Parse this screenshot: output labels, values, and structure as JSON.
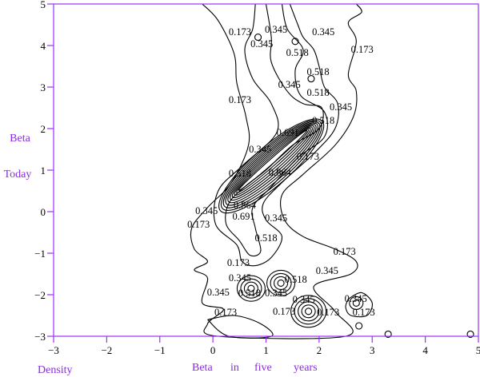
{
  "chart_data": {
    "type": "contour",
    "xlabel_words": [
      "Beta",
      "in",
      "five",
      "years"
    ],
    "ylabel_lines": [
      "Beta",
      "Today"
    ],
    "corner_label": "Density",
    "xlim": [
      -3,
      5
    ],
    "ylim": [
      -3,
      5
    ],
    "xticks": [
      "-3",
      "-2",
      "-1",
      "0",
      "1",
      "2",
      "3",
      "4",
      "5"
    ],
    "yticks": [
      "-3",
      "-2",
      "-1",
      "0",
      "1",
      "2",
      "3",
      "4",
      "5"
    ],
    "grid": false,
    "axis_color": "#9b30ff",
    "line_color": "#000000",
    "levels": [
      0.173,
      0.345,
      0.518,
      0.691,
      0.864
    ],
    "contours": [
      {
        "level": 0.173,
        "points": [
          [
            -0.2,
            5
          ],
          [
            0.1,
            4.6
          ],
          [
            0.4,
            3.8
          ],
          [
            0.45,
            3.1
          ],
          [
            0.62,
            2.3
          ],
          [
            0.67,
            1.6
          ],
          [
            0.35,
            0.7
          ],
          [
            -0.1,
            0.1
          ],
          [
            -0.4,
            -0.4
          ],
          [
            -0.35,
            -0.9
          ],
          [
            -0.1,
            -1.2
          ],
          [
            -0.35,
            -1.4
          ],
          [
            -0.1,
            -1.6
          ],
          [
            -0.2,
            -2.2
          ],
          [
            0.2,
            -2.35
          ],
          [
            -0.1,
            -2.7
          ],
          [
            0.1,
            -3
          ],
          [
            2.5,
            -3
          ],
          [
            2.3,
            -2.4
          ],
          [
            1.9,
            -1.8
          ],
          [
            2.6,
            -1.5
          ],
          [
            2.7,
            -1.2
          ],
          [
            2.3,
            -0.9
          ],
          [
            1.7,
            -0.6
          ],
          [
            1.35,
            -0.2
          ],
          [
            1.3,
            0.4
          ],
          [
            1.7,
            0.9
          ],
          [
            2.3,
            1.6
          ],
          [
            2.65,
            2.3
          ],
          [
            2.7,
            2.9
          ],
          [
            2.55,
            3.3
          ],
          [
            2.7,
            4.1
          ],
          [
            2.55,
            4.55
          ],
          [
            2.8,
            4.8
          ],
          [
            2.7,
            5
          ]
        ]
      },
      {
        "level": 0.345,
        "points": [
          [
            0.8,
            5
          ],
          [
            0.75,
            4.4
          ],
          [
            0.6,
            3.9
          ],
          [
            0.75,
            3.2
          ],
          [
            1.1,
            2.6
          ],
          [
            1.2,
            1.9
          ],
          [
            0.55,
            1.1
          ],
          [
            0.1,
            0.5
          ],
          [
            0.05,
            -0.3
          ],
          [
            0.45,
            -0.8
          ],
          [
            0.55,
            -1.2
          ],
          [
            0.8,
            -1.3
          ],
          [
            1.1,
            -1.1
          ],
          [
            1.3,
            -0.6
          ],
          [
            1.0,
            -0.2
          ],
          [
            0.95,
            0.2
          ],
          [
            1.3,
            0.7
          ],
          [
            1.9,
            1.4
          ],
          [
            2.3,
            2.0
          ],
          [
            2.35,
            2.6
          ],
          [
            2.1,
            3.0
          ],
          [
            2.0,
            3.5
          ],
          [
            1.9,
            3.9
          ],
          [
            1.7,
            4.2
          ],
          [
            1.6,
            4.5
          ],
          [
            1.45,
            5
          ]
        ]
      },
      {
        "level": 0.518,
        "points": [
          [
            1.0,
            5
          ],
          [
            1.1,
            4.2
          ],
          [
            1.1,
            3.6
          ],
          [
            1.4,
            2.9
          ],
          [
            1.7,
            2.6
          ],
          [
            2.05,
            2.5
          ],
          [
            2.0,
            2.0
          ],
          [
            1.5,
            1.6
          ],
          [
            1.0,
            1.0
          ],
          [
            0.6,
            0.6
          ],
          [
            0.3,
            0.2
          ],
          [
            0.25,
            -0.3
          ],
          [
            0.5,
            -0.7
          ],
          [
            0.7,
            -1.05
          ],
          [
            0.9,
            -0.95
          ],
          [
            0.8,
            -0.4
          ],
          [
            0.75,
            0.1
          ],
          [
            1.1,
            0.6
          ],
          [
            1.6,
            1.3
          ],
          [
            2.1,
            1.8
          ],
          [
            2.1,
            2.4
          ],
          [
            1.65,
            2.8
          ],
          [
            1.55,
            3.4
          ],
          [
            1.7,
            3.9
          ],
          [
            1.4,
            4.4
          ],
          [
            1.3,
            5
          ]
        ]
      },
      {
        "level": 0.173,
        "points": [
          [
            -0.1,
            -2.6
          ],
          [
            0.4,
            -2.5
          ],
          [
            0.9,
            -2.7
          ],
          [
            1.1,
            -3
          ],
          [
            0.3,
            -3
          ],
          [
            -0.1,
            -2.6
          ]
        ]
      },
      {
        "level": 0.173,
        "points": [
          [
            2.55,
            -2.1
          ],
          [
            2.8,
            -1.95
          ],
          [
            3.0,
            -2.2
          ],
          [
            2.9,
            -2.5
          ],
          [
            2.6,
            -2.5
          ],
          [
            2.5,
            -2.3
          ],
          [
            2.55,
            -2.1
          ]
        ]
      }
    ],
    "ridge": {
      "from": [
        0.3,
        0.2
      ],
      "to": [
        1.9,
        2.0
      ],
      "rings": 10
    },
    "peaks": [
      {
        "at": [
          0.72,
          -1.85
        ],
        "rings": 4
      },
      {
        "at": [
          1.28,
          -1.72
        ],
        "rings": 4
      },
      {
        "at": [
          1.8,
          -2.4
        ],
        "rings": 5
      },
      {
        "at": [
          2.7,
          -2.2
        ],
        "rings": 2
      },
      {
        "at": [
          1.55,
          4.1
        ],
        "rings": 1
      },
      {
        "at": [
          1.85,
          3.2
        ],
        "rings": 1
      },
      {
        "at": [
          2.75,
          -2.75
        ],
        "rings": 1
      },
      {
        "at": [
          0.85,
          4.2
        ],
        "rings": 1
      },
      {
        "at": [
          3.3,
          -2.95
        ],
        "rings": 1
      },
      {
        "at": [
          4.85,
          -2.95
        ],
        "rings": 1
      }
    ],
    "labels": [
      {
        "text": "0.173",
        "at": [
          0.51,
          4.33
        ]
      },
      {
        "text": "0.345",
        "at": [
          1.19,
          4.38
        ]
      },
      {
        "text": "0.345",
        "at": [
          2.08,
          4.33
        ]
      },
      {
        "text": "0.345",
        "at": [
          0.92,
          4.04
        ]
      },
      {
        "text": "0.518",
        "at": [
          1.59,
          3.83
        ]
      },
      {
        "text": "0.173",
        "at": [
          2.81,
          3.9
        ]
      },
      {
        "text": "0.518",
        "at": [
          1.98,
          3.37
        ]
      },
      {
        "text": "0.345",
        "at": [
          1.44,
          3.06
        ]
      },
      {
        "text": "0.518",
        "at": [
          1.98,
          2.87
        ]
      },
      {
        "text": "0.173",
        "at": [
          0.51,
          2.69
        ]
      },
      {
        "text": "0.345",
        "at": [
          2.41,
          2.52
        ]
      },
      {
        "text": "0.518",
        "at": [
          2.08,
          2.19
        ]
      },
      {
        "text": "0.691",
        "at": [
          1.41,
          1.9
        ]
      },
      {
        "text": "0.345",
        "at": [
          0.89,
          1.5
        ]
      },
      {
        "text": "0.173",
        "at": [
          1.79,
          1.33
        ]
      },
      {
        "text": "0.864",
        "at": [
          1.26,
          0.94
        ]
      },
      {
        "text": "0.518",
        "at": [
          0.51,
          0.92
        ]
      },
      {
        "text": "0.864",
        "at": [
          0.6,
          0.15
        ]
      },
      {
        "text": "0.345",
        "at": [
          -0.12,
          0.02
        ]
      },
      {
        "text": "0.691",
        "at": [
          0.58,
          -0.12
        ]
      },
      {
        "text": "0.345",
        "at": [
          1.19,
          -0.15
        ]
      },
      {
        "text": "0.173",
        "at": [
          -0.27,
          -0.31
        ]
      },
      {
        "text": "0.518",
        "at": [
          1.0,
          -0.63
        ]
      },
      {
        "text": "0.173",
        "at": [
          2.48,
          -0.96
        ]
      },
      {
        "text": "0.173",
        "at": [
          0.48,
          -1.23
        ]
      },
      {
        "text": "0.345",
        "at": [
          2.15,
          -1.42
        ]
      },
      {
        "text": "0.345",
        "at": [
          0.51,
          -1.6
        ]
      },
      {
        "text": "0.518",
        "at": [
          1.56,
          -1.63
        ]
      },
      {
        "text": "0.345",
        "at": [
          0.1,
          -1.94
        ]
      },
      {
        "text": "0.518",
        "at": [
          0.69,
          -1.96
        ]
      },
      {
        "text": "0.345",
        "at": [
          1.19,
          -1.96
        ]
      },
      {
        "text": "0.345",
        "at": [
          1.71,
          -2.12
        ]
      },
      {
        "text": "0.345",
        "at": [
          2.69,
          -2.1
        ]
      },
      {
        "text": "0.173",
        "at": [
          0.24,
          -2.42
        ]
      },
      {
        "text": "0.173",
        "at": [
          1.34,
          -2.4
        ]
      },
      {
        "text": "0.173",
        "at": [
          2.17,
          -2.42
        ]
      },
      {
        "text": "0.173",
        "at": [
          2.84,
          -2.42
        ]
      }
    ]
  }
}
